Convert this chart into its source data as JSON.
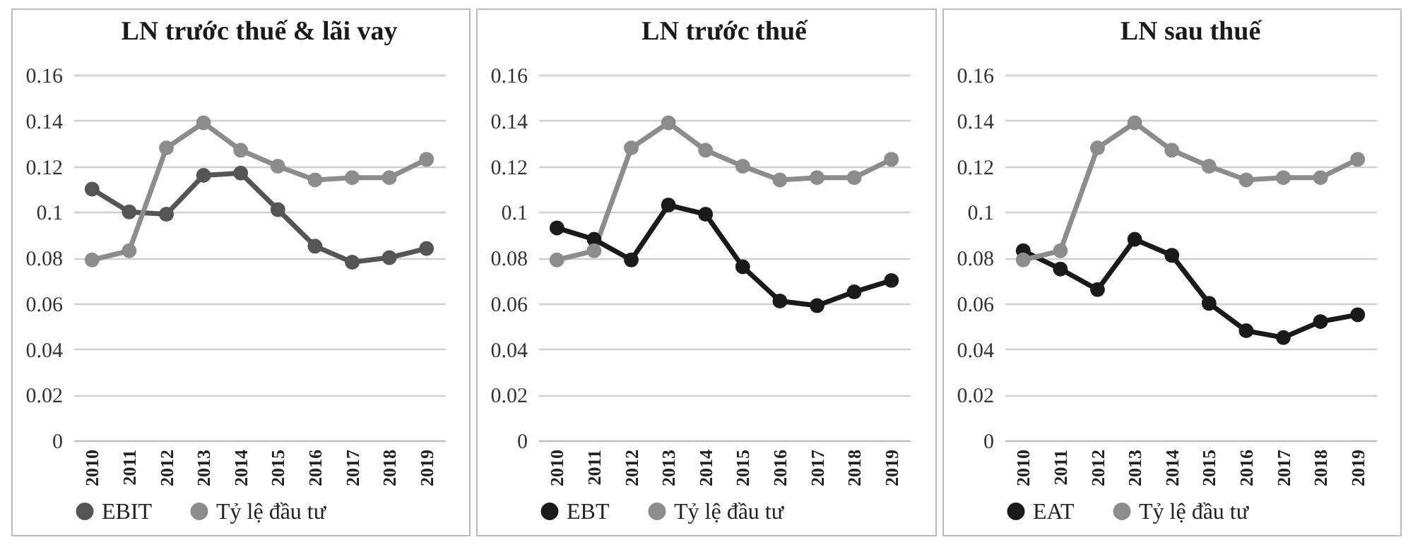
{
  "chart_data": [
    {
      "type": "line",
      "title": "LN trước thuế & lãi vay",
      "categories": [
        "2010",
        "2011",
        "2012",
        "2013",
        "2014",
        "2015",
        "2016",
        "2017",
        "2018",
        "2019"
      ],
      "ylim": [
        0,
        0.16
      ],
      "yticks": [
        0,
        0.02,
        0.04,
        0.06,
        0.08,
        0.1,
        0.12,
        0.14,
        0.16
      ],
      "grid": "y",
      "legend": "bottom",
      "marker": "circle",
      "series": [
        {
          "name": "EBIT",
          "color": "#555555",
          "values": [
            0.11,
            0.1,
            0.099,
            0.116,
            0.117,
            0.101,
            0.085,
            0.078,
            0.08,
            0.084
          ]
        },
        {
          "name": "Tỷ lệ đầu tư",
          "color": "#8c8c8c",
          "values": [
            0.079,
            0.083,
            0.128,
            0.139,
            0.127,
            0.12,
            0.114,
            0.115,
            0.115,
            0.123
          ]
        }
      ]
    },
    {
      "type": "line",
      "title": "LN trước thuế",
      "categories": [
        "2010",
        "2011",
        "2012",
        "2013",
        "2014",
        "2015",
        "2016",
        "2017",
        "2018",
        "2019"
      ],
      "ylim": [
        0,
        0.16
      ],
      "yticks": [
        0,
        0.02,
        0.04,
        0.06,
        0.08,
        0.1,
        0.12,
        0.14,
        0.16
      ],
      "grid": "y",
      "legend": "bottom",
      "marker": "circle",
      "series": [
        {
          "name": "EBT",
          "color": "#1a1a1a",
          "values": [
            0.093,
            0.088,
            0.079,
            0.103,
            0.099,
            0.076,
            0.061,
            0.059,
            0.065,
            0.07
          ]
        },
        {
          "name": "Tỷ lệ đầu tư",
          "color": "#8c8c8c",
          "values": [
            0.079,
            0.083,
            0.128,
            0.139,
            0.127,
            0.12,
            0.114,
            0.115,
            0.115,
            0.123
          ]
        }
      ]
    },
    {
      "type": "line",
      "title": "LN sau thuế",
      "categories": [
        "2010",
        "2011",
        "2012",
        "2013",
        "2014",
        "2015",
        "2016",
        "2017",
        "2018",
        "2019"
      ],
      "ylim": [
        0,
        0.16
      ],
      "yticks": [
        0,
        0.02,
        0.04,
        0.06,
        0.08,
        0.1,
        0.12,
        0.14,
        0.16
      ],
      "grid": "y",
      "legend": "bottom",
      "marker": "circle",
      "series": [
        {
          "name": "EAT",
          "color": "#1a1a1a",
          "values": [
            0.083,
            0.075,
            0.066,
            0.088,
            0.081,
            0.06,
            0.048,
            0.045,
            0.052,
            0.055
          ]
        },
        {
          "name": "Tỷ lệ đầu tư",
          "color": "#8c8c8c",
          "values": [
            0.079,
            0.083,
            0.128,
            0.139,
            0.127,
            0.12,
            0.114,
            0.115,
            0.115,
            0.123
          ]
        }
      ]
    }
  ]
}
